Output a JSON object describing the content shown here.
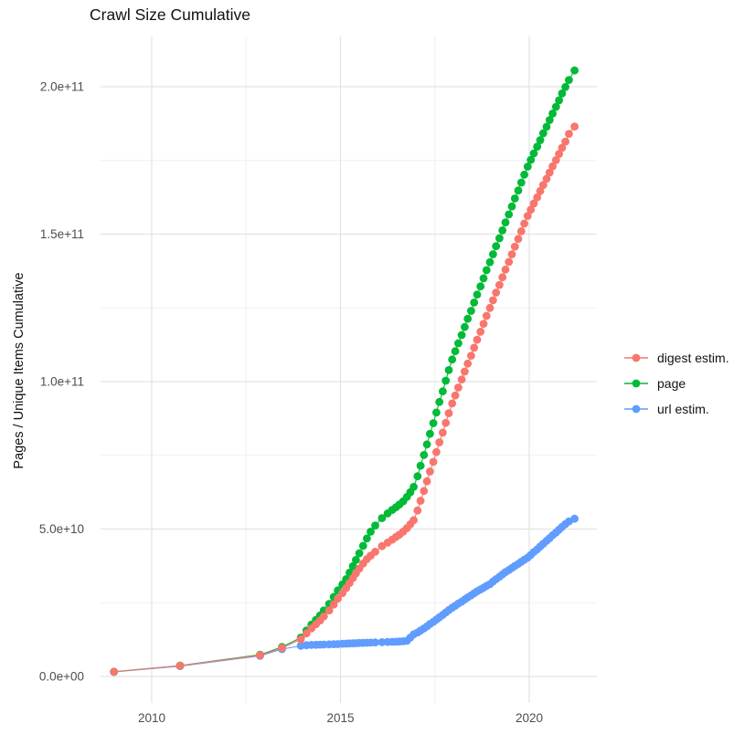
{
  "title": "Crawl Size Cumulative",
  "colors": {
    "background": "#FFFFFF",
    "grid_major": "#E3E3E3",
    "grid_minor": "#F0F0F0",
    "tick_text": "#4D4D4D",
    "title_text": "#111111",
    "digest": "#F8766D",
    "page": "#00BA38",
    "url": "#619CFF"
  },
  "chart_data": {
    "type": "line",
    "title": "Crawl Size Cumulative",
    "xlabel": "",
    "ylabel": "Pages / Unique Items Cumulative",
    "value_unit": "1e9 (values_billions are pages / unique items, in billions)",
    "xlim": [
      2008.6,
      2021.8
    ],
    "ylim": [
      0,
      217000000000.0
    ],
    "grid": "major+minor",
    "legend_position": "right",
    "x_ticks": [
      2010,
      2015,
      2020
    ],
    "x_tick_labels": [
      "2010",
      "2015",
      "2020"
    ],
    "x_minor_ticks": [
      2012.5,
      2017.5
    ],
    "y_ticks_billions": [
      0,
      50,
      100,
      150,
      200
    ],
    "y_tick_labels": [
      "0.0e+00",
      "5.0e+10",
      "1.0e+11",
      "1.5e+11",
      "2.0e+11"
    ],
    "y_minor_ticks_billions": [
      25,
      75,
      125,
      175
    ],
    "x_years": [
      2009.0,
      2010.75,
      2012.87,
      2013.45,
      2013.95,
      2014.1,
      2014.23,
      2014.35,
      2014.46,
      2014.56,
      2014.7,
      2014.82,
      2014.93,
      2015.05,
      2015.15,
      2015.24,
      2015.33,
      2015.41,
      2015.5,
      2015.6,
      2015.7,
      2015.8,
      2015.92,
      2016.1,
      2016.25,
      2016.37,
      2016.47,
      2016.56,
      2016.66,
      2016.76,
      2016.85,
      2016.94,
      2017.04,
      2017.12,
      2017.21,
      2017.29,
      2017.37,
      2017.46,
      2017.54,
      2017.62,
      2017.71,
      2017.79,
      2017.87,
      2017.96,
      2018.04,
      2018.12,
      2018.21,
      2018.29,
      2018.37,
      2018.46,
      2018.54,
      2018.62,
      2018.71,
      2018.79,
      2018.87,
      2018.96,
      2019.04,
      2019.12,
      2019.21,
      2019.29,
      2019.37,
      2019.46,
      2019.54,
      2019.62,
      2019.71,
      2019.79,
      2019.87,
      2019.96,
      2020.04,
      2020.12,
      2020.21,
      2020.29,
      2020.37,
      2020.46,
      2020.54,
      2020.62,
      2020.71,
      2020.79,
      2020.87,
      2020.96,
      2021.05,
      2021.2
    ],
    "series": [
      {
        "name": "digest estim.",
        "color": "#F8766D",
        "values_billions": [
          1.6,
          3.65,
          7.2,
          9.7,
          12.6,
          14.6,
          16.3,
          17.7,
          19.0,
          20.4,
          22.4,
          24.4,
          26.4,
          28.3,
          30.0,
          31.7,
          33.4,
          35.0,
          36.6,
          38.3,
          39.8,
          41.0,
          42.3,
          44.2,
          45.4,
          46.4,
          47.3,
          48.1,
          49.1,
          50.3,
          51.6,
          53.0,
          56.3,
          59.6,
          62.9,
          66.2,
          69.5,
          72.8,
          76.1,
          79.4,
          82.7,
          86.0,
          89.3,
          92.6,
          95.3,
          98.0,
          100.7,
          103.4,
          106.1,
          108.8,
          111.5,
          114.2,
          116.9,
          119.6,
          122.3,
          125.0,
          127.6,
          130.2,
          132.8,
          135.4,
          138.0,
          140.6,
          143.2,
          145.8,
          148.4,
          151.0,
          153.6,
          156.2,
          158.3,
          160.4,
          162.5,
          164.6,
          166.7,
          168.8,
          170.9,
          173.0,
          175.1,
          177.2,
          179.3,
          181.4,
          184.0,
          186.5
        ]
      },
      {
        "name": "page",
        "color": "#00BA38",
        "values_billions": [
          1.6,
          3.7,
          7.4,
          10.0,
          13.2,
          15.6,
          17.6,
          19.2,
          20.7,
          22.4,
          24.6,
          27.0,
          29.2,
          31.2,
          33.0,
          35.2,
          37.4,
          39.5,
          41.8,
          44.3,
          46.8,
          49.1,
          51.2,
          53.7,
          55.3,
          56.5,
          57.4,
          58.3,
          59.4,
          60.9,
          62.5,
          64.3,
          67.9,
          71.5,
          75.1,
          78.7,
          82.3,
          85.9,
          89.5,
          93.1,
          96.7,
          100.3,
          103.9,
          107.5,
          110.3,
          113.0,
          115.8,
          118.5,
          121.3,
          124.0,
          126.8,
          129.5,
          132.3,
          135.0,
          137.8,
          140.5,
          143.2,
          145.9,
          148.6,
          151.3,
          154.0,
          156.7,
          159.4,
          162.1,
          164.8,
          167.5,
          170.2,
          172.9,
          175.2,
          177.4,
          179.7,
          181.9,
          184.2,
          186.4,
          188.7,
          190.9,
          193.2,
          195.4,
          197.7,
          199.9,
          202.3,
          205.5
        ]
      },
      {
        "name": "url estim.",
        "color": "#619CFF",
        "values_billions": [
          1.55,
          3.5,
          7.0,
          9.3,
          10.4,
          10.6,
          10.7,
          10.75,
          10.8,
          10.85,
          10.9,
          10.95,
          11.0,
          11.1,
          11.15,
          11.2,
          11.25,
          11.3,
          11.35,
          11.4,
          11.45,
          11.5,
          11.55,
          11.65,
          11.7,
          11.75,
          11.8,
          11.85,
          11.95,
          12.1,
          13.2,
          14.3,
          14.9,
          15.6,
          16.3,
          17.0,
          17.8,
          18.5,
          19.3,
          20.1,
          20.9,
          21.7,
          22.5,
          23.3,
          24.0,
          24.7,
          25.4,
          26.1,
          26.8,
          27.5,
          28.2,
          28.9,
          29.5,
          30.1,
          30.7,
          31.3,
          32.2,
          33.0,
          33.8,
          34.6,
          35.4,
          36.1,
          36.8,
          37.5,
          38.2,
          38.9,
          39.6,
          40.3,
          41.2,
          42.2,
          43.1,
          44.1,
          45.0,
          46.0,
          46.9,
          47.9,
          48.8,
          49.8,
          50.7,
          51.7,
          52.6,
          53.5
        ]
      }
    ]
  }
}
